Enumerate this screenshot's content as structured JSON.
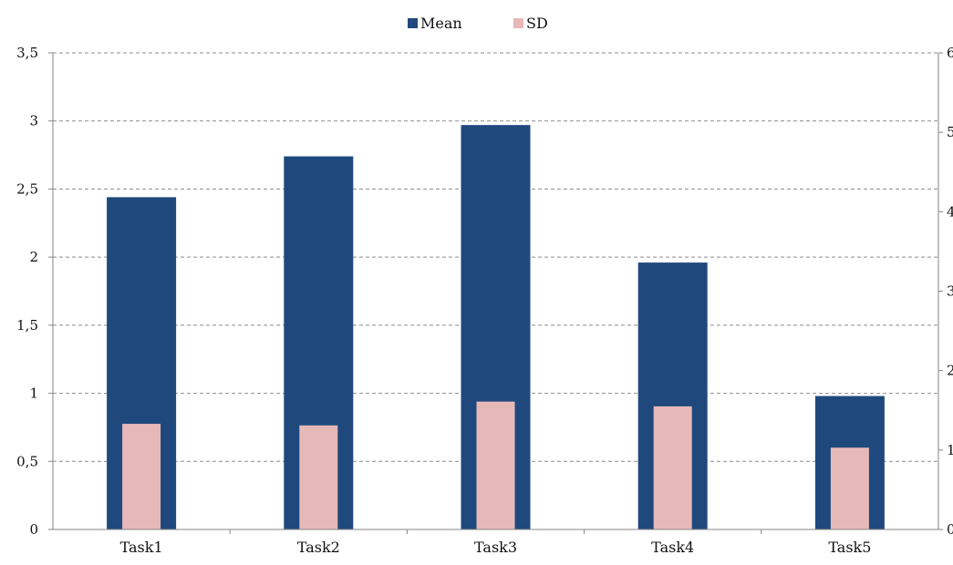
{
  "chart_data": {
    "type": "bar",
    "categories": [
      "Task1",
      "Task2",
      "Task3",
      "Task4",
      "Task5"
    ],
    "series": [
      {
        "name": "Mean",
        "axis": "left",
        "color": "#1f497d",
        "values": [
          2.44,
          2.74,
          2.97,
          1.96,
          0.98
        ]
      },
      {
        "name": "SD",
        "axis": "right",
        "color": "#e6b9b8",
        "values": [
          1.33,
          1.31,
          1.61,
          1.55,
          1.03
        ]
      }
    ],
    "y_left": {
      "ticks": [
        "0",
        "0,5",
        "1",
        "1,5",
        "2",
        "2,5",
        "3",
        "3,5"
      ],
      "lim": [
        0,
        3.5
      ]
    },
    "y_right": {
      "ticks": [
        "0",
        "1",
        "2",
        "3",
        "4",
        "5",
        "6"
      ],
      "lim": [
        0,
        6
      ]
    },
    "grid": true,
    "legend_position": "top-center",
    "title": "",
    "xlabel": "",
    "ylabel": ""
  }
}
